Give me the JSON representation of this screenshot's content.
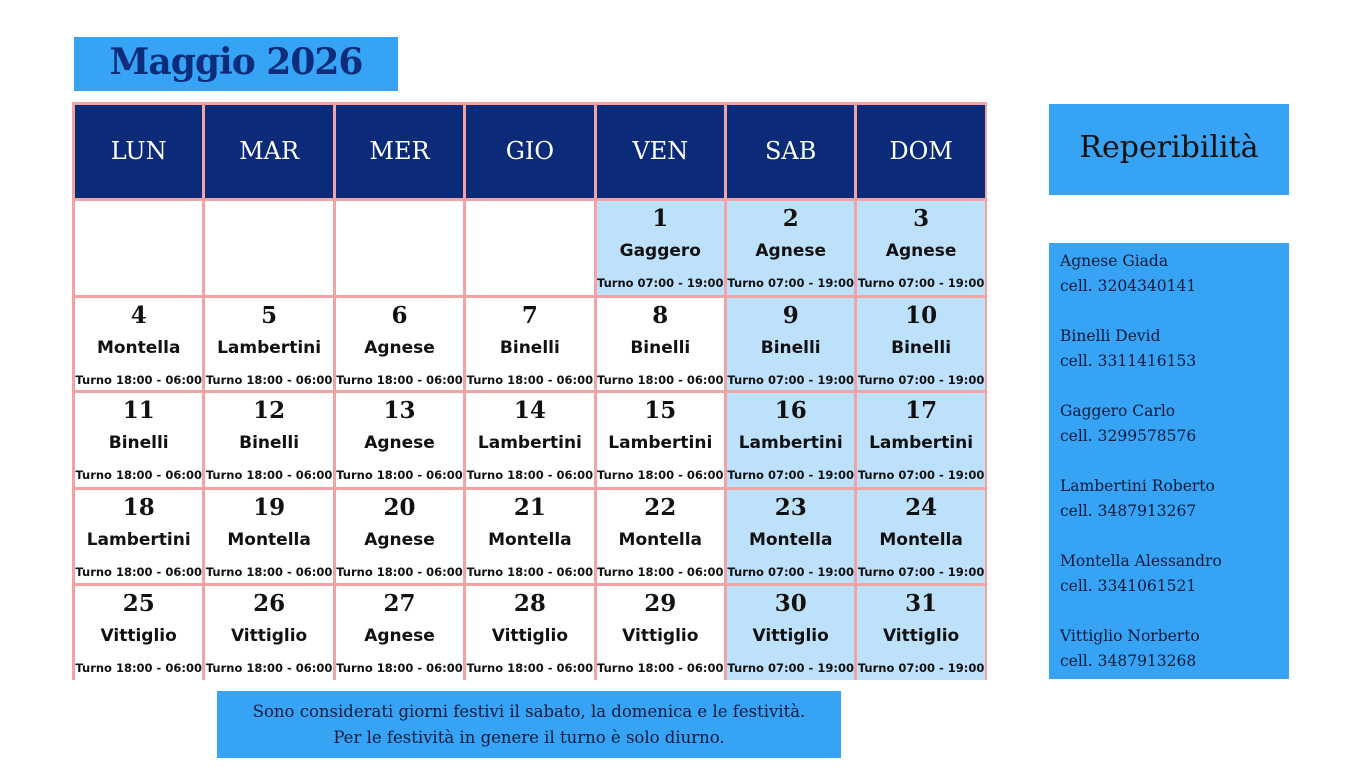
{
  "header": {
    "title": "Maggio 2026"
  },
  "weekdays": [
    "LUN",
    "MAR",
    "MER",
    "GIO",
    "VEN",
    "SAB",
    "DOM"
  ],
  "weeks": [
    [
      null,
      null,
      null,
      null,
      {
        "day": "1",
        "name": "Gaggero",
        "shift": "Turno 07:00 - 19:00",
        "holiday": true
      },
      {
        "day": "2",
        "name": "Agnese",
        "shift": "Turno 07:00 - 19:00",
        "holiday": true
      },
      {
        "day": "3",
        "name": "Agnese",
        "shift": "Turno 07:00 - 19:00",
        "holiday": true
      }
    ],
    [
      {
        "day": "4",
        "name": "Montella",
        "shift": "Turno 18:00 - 06:00",
        "holiday": false
      },
      {
        "day": "5",
        "name": "Lambertini",
        "shift": "Turno 18:00 - 06:00",
        "holiday": false
      },
      {
        "day": "6",
        "name": "Agnese",
        "shift": "Turno 18:00 - 06:00",
        "holiday": false
      },
      {
        "day": "7",
        "name": "Binelli",
        "shift": "Turno 18:00 - 06:00",
        "holiday": false
      },
      {
        "day": "8",
        "name": "Binelli",
        "shift": "Turno 18:00 - 06:00",
        "holiday": false
      },
      {
        "day": "9",
        "name": "Binelli",
        "shift": "Turno 07:00 - 19:00",
        "holiday": true
      },
      {
        "day": "10",
        "name": "Binelli",
        "shift": "Turno 07:00 - 19:00",
        "holiday": true
      }
    ],
    [
      {
        "day": "11",
        "name": "Binelli",
        "shift": "Turno 18:00 - 06:00",
        "holiday": false
      },
      {
        "day": "12",
        "name": "Binelli",
        "shift": "Turno 18:00 - 06:00",
        "holiday": false
      },
      {
        "day": "13",
        "name": "Agnese",
        "shift": "Turno 18:00 - 06:00",
        "holiday": false
      },
      {
        "day": "14",
        "name": "Lambertini",
        "shift": "Turno 18:00 - 06:00",
        "holiday": false
      },
      {
        "day": "15",
        "name": "Lambertini",
        "shift": "Turno 18:00 - 06:00",
        "holiday": false
      },
      {
        "day": "16",
        "name": "Lambertini",
        "shift": "Turno 07:00 - 19:00",
        "holiday": true
      },
      {
        "day": "17",
        "name": "Lambertini",
        "shift": "Turno 07:00 - 19:00",
        "holiday": true
      }
    ],
    [
      {
        "day": "18",
        "name": "Lambertini",
        "shift": "Turno 18:00 - 06:00",
        "holiday": false
      },
      {
        "day": "19",
        "name": "Montella",
        "shift": "Turno 18:00 - 06:00",
        "holiday": false
      },
      {
        "day": "20",
        "name": "Agnese",
        "shift": "Turno 18:00 - 06:00",
        "holiday": false
      },
      {
        "day": "21",
        "name": "Montella",
        "shift": "Turno 18:00 - 06:00",
        "holiday": false
      },
      {
        "day": "22",
        "name": "Montella",
        "shift": "Turno 18:00 - 06:00",
        "holiday": false
      },
      {
        "day": "23",
        "name": "Montella",
        "shift": "Turno 07:00 - 19:00",
        "holiday": true
      },
      {
        "day": "24",
        "name": "Montella",
        "shift": "Turno 07:00 - 19:00",
        "holiday": true
      }
    ],
    [
      {
        "day": "25",
        "name": "Vittiglio",
        "shift": "Turno 18:00 - 06:00",
        "holiday": false
      },
      {
        "day": "26",
        "name": "Vittiglio",
        "shift": "Turno 18:00 - 06:00",
        "holiday": false
      },
      {
        "day": "27",
        "name": "Agnese",
        "shift": "Turno 18:00 - 06:00",
        "holiday": false
      },
      {
        "day": "28",
        "name": "Vittiglio",
        "shift": "Turno 18:00 - 06:00",
        "holiday": false
      },
      {
        "day": "29",
        "name": "Vittiglio",
        "shift": "Turno 18:00 - 06:00",
        "holiday": false
      },
      {
        "day": "30",
        "name": "Vittiglio",
        "shift": "Turno 07:00 - 19:00",
        "holiday": true
      },
      {
        "day": "31",
        "name": "Vittiglio",
        "shift": "Turno 07:00 - 19:00",
        "holiday": true
      }
    ]
  ],
  "sidebar": {
    "title": "Reperibilità",
    "contacts": [
      {
        "name": "Agnese Giada",
        "phone": "cell. 3204340141"
      },
      {
        "name": "Binelli Devid",
        "phone": "cell. 3311416153"
      },
      {
        "name": "Gaggero Carlo",
        "phone": "cell. 3299578576"
      },
      {
        "name": "Lambertini Roberto",
        "phone": "cell. 3487913267"
      },
      {
        "name": "Montella Alessandro",
        "phone": "cell. 3341061521"
      },
      {
        "name": "Vittiglio Norberto",
        "phone": "cell. 3487913268"
      }
    ]
  },
  "footer": {
    "lines": [
      "Sono considerati giorni festivi il sabato, la domenica e le festività.",
      "Per le festività in genere il turno è solo diurno."
    ]
  }
}
